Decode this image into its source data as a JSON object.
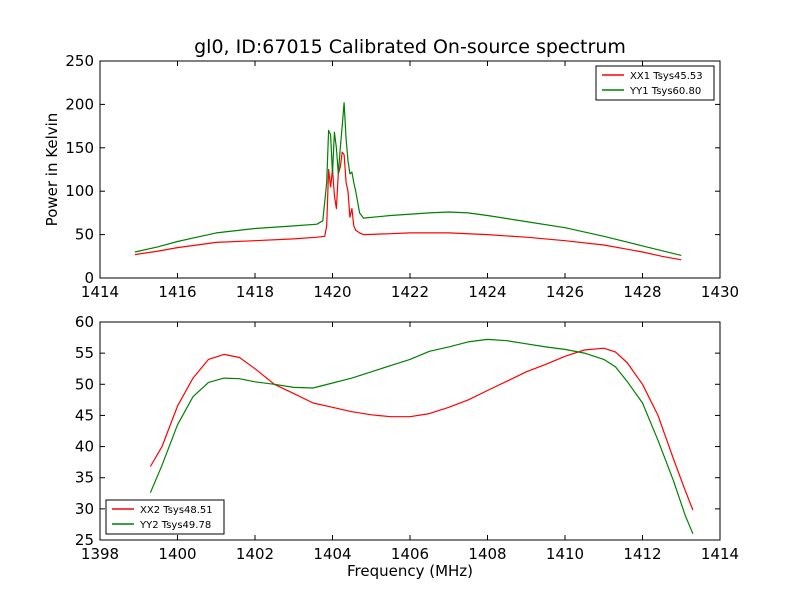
{
  "figure": {
    "title": "gl0, ID:67015 Calibrated On-source spectrum"
  },
  "chart_data": [
    {
      "type": "line",
      "ylabel": "Power in Kelvin",
      "xlabel": "",
      "xlim": [
        1414,
        1430
      ],
      "ylim": [
        0,
        250
      ],
      "xticks": [
        1414,
        1416,
        1418,
        1420,
        1422,
        1424,
        1426,
        1428,
        1430
      ],
      "yticks": [
        0,
        50,
        100,
        150,
        200,
        250
      ],
      "grid": false,
      "legend_position": "top-right",
      "series": [
        {
          "name": "XX1 Tsys45.53",
          "color": "#ff0000",
          "points": [
            [
              1414.9,
              27
            ],
            [
              1415.5,
              31
            ],
            [
              1416,
              35
            ],
            [
              1416.5,
              38
            ],
            [
              1417,
              41
            ],
            [
              1418,
              43
            ],
            [
              1419,
              45
            ],
            [
              1419.6,
              47
            ],
            [
              1419.8,
              48
            ],
            [
              1419.85,
              60
            ],
            [
              1419.9,
              125
            ],
            [
              1419.95,
              105
            ],
            [
              1420.0,
              125
            ],
            [
              1420.05,
              95
            ],
            [
              1420.1,
              80
            ],
            [
              1420.15,
              120
            ],
            [
              1420.2,
              128
            ],
            [
              1420.25,
              145
            ],
            [
              1420.3,
              142
            ],
            [
              1420.35,
              110
            ],
            [
              1420.4,
              100
            ],
            [
              1420.45,
              70
            ],
            [
              1420.5,
              80
            ],
            [
              1420.55,
              60
            ],
            [
              1420.6,
              55
            ],
            [
              1420.7,
              52
            ],
            [
              1420.8,
              50
            ],
            [
              1421.5,
              51
            ],
            [
              1422,
              52
            ],
            [
              1423,
              52
            ],
            [
              1424,
              50
            ],
            [
              1425,
              47
            ],
            [
              1426,
              43
            ],
            [
              1427,
              38
            ],
            [
              1428,
              30
            ],
            [
              1428.5,
              25
            ],
            [
              1429,
              21
            ]
          ]
        },
        {
          "name": "YY1 Tsys60.80",
          "color": "#008000",
          "points": [
            [
              1414.9,
              30
            ],
            [
              1415.5,
              36
            ],
            [
              1416,
              42
            ],
            [
              1416.5,
              47
            ],
            [
              1417,
              52
            ],
            [
              1418,
              57
            ],
            [
              1419,
              60
            ],
            [
              1419.6,
              62
            ],
            [
              1419.75,
              66
            ],
            [
              1419.85,
              110
            ],
            [
              1419.9,
              170
            ],
            [
              1419.95,
              165
            ],
            [
              1420.0,
              120
            ],
            [
              1420.05,
              168
            ],
            [
              1420.1,
              150
            ],
            [
              1420.15,
              120
            ],
            [
              1420.2,
              150
            ],
            [
              1420.25,
              175
            ],
            [
              1420.3,
              202
            ],
            [
              1420.35,
              160
            ],
            [
              1420.4,
              135
            ],
            [
              1420.45,
              120
            ],
            [
              1420.5,
              122
            ],
            [
              1420.55,
              110
            ],
            [
              1420.6,
              100
            ],
            [
              1420.7,
              75
            ],
            [
              1420.8,
              69
            ],
            [
              1421.5,
              72
            ],
            [
              1422.5,
              75
            ],
            [
              1423,
              76
            ],
            [
              1423.5,
              75
            ],
            [
              1424,
              72
            ],
            [
              1425,
              65
            ],
            [
              1426,
              58
            ],
            [
              1427,
              48
            ],
            [
              1428,
              37
            ],
            [
              1429,
              26
            ]
          ]
        }
      ]
    },
    {
      "type": "line",
      "xlabel": "Frequency (MHz)",
      "ylabel": "",
      "xlim": [
        1398,
        1414
      ],
      "ylim": [
        25,
        60
      ],
      "xticks": [
        1398,
        1400,
        1402,
        1404,
        1406,
        1408,
        1410,
        1412,
        1414
      ],
      "yticks": [
        25,
        30,
        35,
        40,
        45,
        50,
        55,
        60
      ],
      "grid": false,
      "legend_position": "bottom-left",
      "series": [
        {
          "name": "XX2 Tsys48.51",
          "color": "#ff0000",
          "points": [
            [
              1399.3,
              36.8
            ],
            [
              1399.6,
              40
            ],
            [
              1400,
              46.5
            ],
            [
              1400.4,
              51
            ],
            [
              1400.8,
              54
            ],
            [
              1401.2,
              54.8
            ],
            [
              1401.6,
              54.3
            ],
            [
              1402,
              52.5
            ],
            [
              1402.5,
              50
            ],
            [
              1403,
              48.5
            ],
            [
              1403.5,
              47
            ],
            [
              1404,
              46.3
            ],
            [
              1404.5,
              45.6
            ],
            [
              1405,
              45.1
            ],
            [
              1405.5,
              44.8
            ],
            [
              1406,
              44.8
            ],
            [
              1406.5,
              45.3
            ],
            [
              1407,
              46.3
            ],
            [
              1407.5,
              47.5
            ],
            [
              1408,
              49
            ],
            [
              1408.5,
              50.5
            ],
            [
              1409,
              52
            ],
            [
              1409.5,
              53.2
            ],
            [
              1410,
              54.5
            ],
            [
              1410.5,
              55.5
            ],
            [
              1411,
              55.8
            ],
            [
              1411.3,
              55.2
            ],
            [
              1411.6,
              53.5
            ],
            [
              1412,
              50
            ],
            [
              1412.4,
              45
            ],
            [
              1412.8,
              38
            ],
            [
              1413.1,
              33
            ],
            [
              1413.3,
              29.8
            ]
          ]
        },
        {
          "name": "YY2 Tsys49.78",
          "color": "#008000",
          "points": [
            [
              1399.3,
              32.6
            ],
            [
              1399.6,
              37
            ],
            [
              1400,
              43.5
            ],
            [
              1400.4,
              48
            ],
            [
              1400.8,
              50.3
            ],
            [
              1401.2,
              51
            ],
            [
              1401.6,
              50.9
            ],
            [
              1402,
              50.4
            ],
            [
              1402.5,
              50
            ],
            [
              1403,
              49.5
            ],
            [
              1403.5,
              49.4
            ],
            [
              1404,
              50.2
            ],
            [
              1404.5,
              51
            ],
            [
              1405,
              52
            ],
            [
              1405.5,
              53
            ],
            [
              1406,
              54
            ],
            [
              1406.5,
              55.3
            ],
            [
              1407,
              56
            ],
            [
              1407.5,
              56.8
            ],
            [
              1408,
              57.2
            ],
            [
              1408.5,
              57
            ],
            [
              1409,
              56.5
            ],
            [
              1409.5,
              56
            ],
            [
              1410,
              55.6
            ],
            [
              1410.5,
              55
            ],
            [
              1411,
              54
            ],
            [
              1411.3,
              52.8
            ],
            [
              1411.6,
              50.5
            ],
            [
              1412,
              47
            ],
            [
              1412.4,
              41
            ],
            [
              1412.8,
              34.5
            ],
            [
              1413.1,
              29
            ],
            [
              1413.3,
              26
            ]
          ]
        }
      ]
    }
  ]
}
